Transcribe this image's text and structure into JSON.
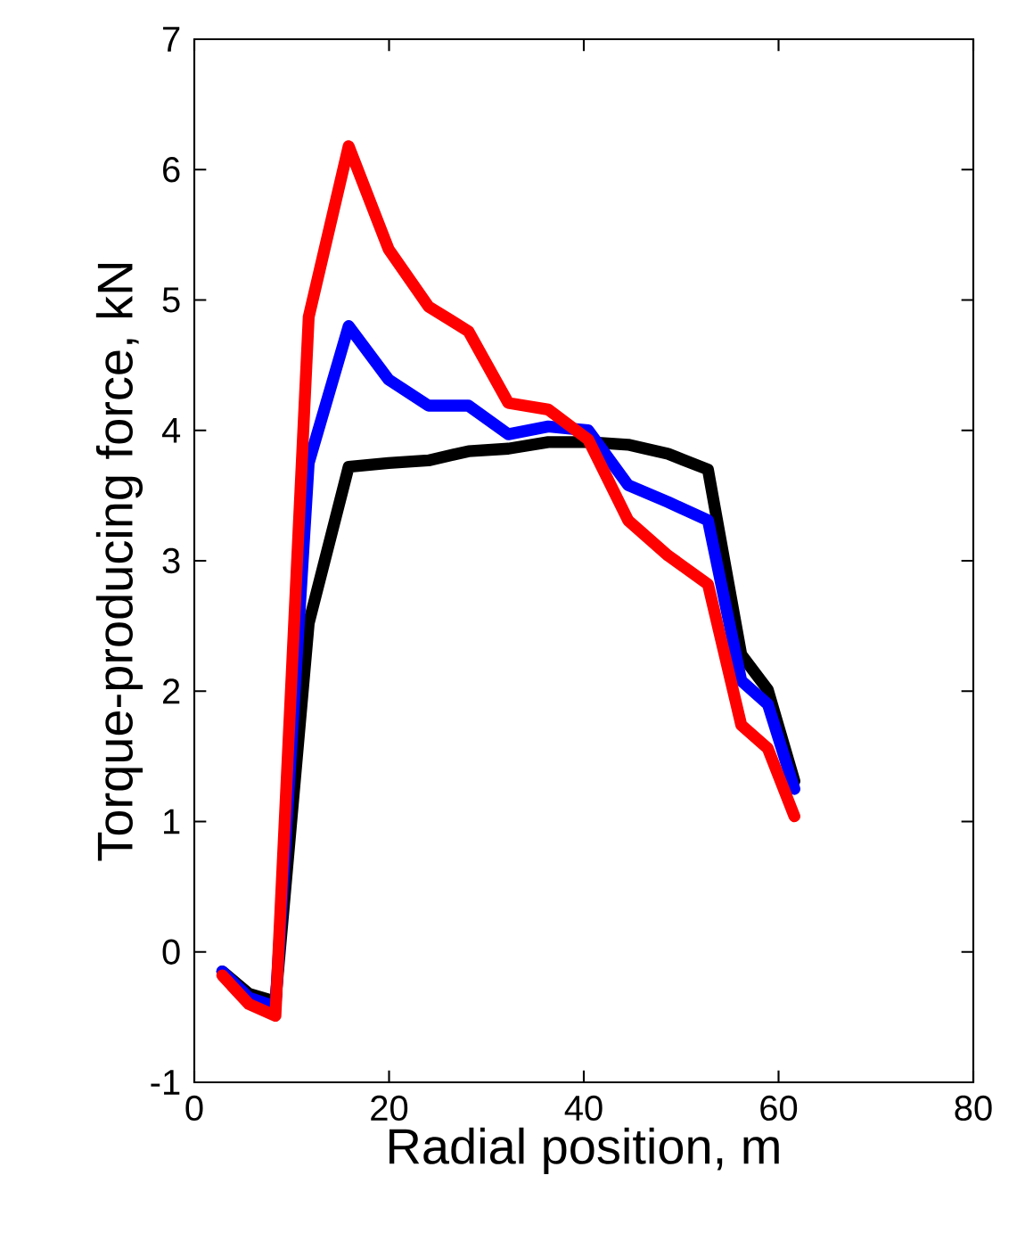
{
  "chart_data": {
    "type": "line",
    "xlabel": "Radial position, m",
    "ylabel": "Torque-producing force, kN",
    "x": [
      2.87,
      5.6,
      8.33,
      11.75,
      15.85,
      19.95,
      24.05,
      28.15,
      32.25,
      36.35,
      40.45,
      44.55,
      48.65,
      52.75,
      56.17,
      58.9,
      61.63
    ],
    "series": [
      {
        "color": "#000000",
        "values": [
          -0.15,
          -0.32,
          -0.38,
          2.52,
          3.72,
          3.75,
          3.77,
          3.84,
          3.86,
          3.91,
          3.91,
          3.89,
          3.82,
          3.7,
          2.28,
          2.01,
          1.31
        ]
      },
      {
        "color": "#0000ff",
        "values": [
          -0.15,
          -0.35,
          -0.42,
          3.75,
          4.8,
          4.39,
          4.19,
          4.19,
          3.97,
          4.03,
          4.0,
          3.58,
          3.45,
          3.31,
          2.08,
          1.9,
          1.25
        ]
      },
      {
        "color": "#ff0000",
        "values": [
          -0.18,
          -0.4,
          -0.49,
          4.87,
          6.18,
          5.39,
          4.95,
          4.76,
          4.21,
          4.16,
          3.93,
          3.31,
          3.04,
          2.82,
          1.74,
          1.56,
          1.04
        ]
      }
    ],
    "xlim": [
      0,
      80
    ],
    "ylim": [
      -1,
      7
    ],
    "xticks": [
      0,
      20,
      40,
      60,
      80
    ],
    "yticks": [
      -1,
      0,
      1,
      2,
      3,
      4,
      5,
      6,
      7
    ],
    "line_style": "solid",
    "marker": "none"
  }
}
